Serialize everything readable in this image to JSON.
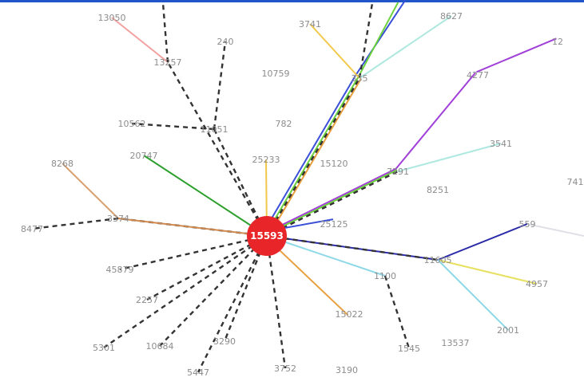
{
  "hub": {
    "id": "hub",
    "label": "15593",
    "color": "#e8262a"
  },
  "nodes": [
    {
      "id": "n13050",
      "label": "13050"
    },
    {
      "id": "n13257",
      "label": "13257"
    },
    {
      "id": "n240",
      "label": "240"
    },
    {
      "id": "n3741",
      "label": "3741"
    },
    {
      "id": "n8627",
      "label": "8627"
    },
    {
      "id": "n12",
      "label": "12"
    },
    {
      "id": "n4277",
      "label": "4277"
    },
    {
      "id": "n10759",
      "label": "10759"
    },
    {
      "id": "n335",
      "label": "335"
    },
    {
      "id": "n10562",
      "label": "10562"
    },
    {
      "id": "n11051",
      "label": "11051"
    },
    {
      "id": "n782",
      "label": "782"
    },
    {
      "id": "n3541",
      "label": "3541"
    },
    {
      "id": "n20747",
      "label": "20747"
    },
    {
      "id": "n25233",
      "label": "25233"
    },
    {
      "id": "n15120",
      "label": "15120"
    },
    {
      "id": "n8268",
      "label": "8268"
    },
    {
      "id": "n7291",
      "label": "7291"
    },
    {
      "id": "n8251",
      "label": "8251"
    },
    {
      "id": "n741",
      "label": "741"
    },
    {
      "id": "n8477",
      "label": "8477"
    },
    {
      "id": "n3374",
      "label": "3374"
    },
    {
      "id": "n25125",
      "label": "25125"
    },
    {
      "id": "n559",
      "label": "559"
    },
    {
      "id": "n45879",
      "label": "45879"
    },
    {
      "id": "n11605",
      "label": "11605"
    },
    {
      "id": "n1100",
      "label": "1100"
    },
    {
      "id": "n4957",
      "label": "4957"
    },
    {
      "id": "n2257",
      "label": "2257"
    },
    {
      "id": "n15022",
      "label": "15022"
    },
    {
      "id": "n2001",
      "label": "2001"
    },
    {
      "id": "n5301",
      "label": "5301"
    },
    {
      "id": "n10684",
      "label": "10684"
    },
    {
      "id": "n3290",
      "label": "3290"
    },
    {
      "id": "n1545",
      "label": "1545"
    },
    {
      "id": "n13537",
      "label": "13537"
    },
    {
      "id": "n5447",
      "label": "5447"
    },
    {
      "id": "n3752",
      "label": "3752"
    },
    {
      "id": "n3190",
      "label": "3190"
    }
  ],
  "edges": [
    {
      "from": "hub",
      "to": "n13257",
      "color": "#333333",
      "style": "dashed"
    },
    {
      "from": "n13257",
      "to": "n13050",
      "color": "#f2a0a0",
      "style": "solid"
    },
    {
      "from": "n13257",
      "to": "top-a",
      "color": "#333333",
      "style": "dashed"
    },
    {
      "from": "hub",
      "to": "n11051",
      "color": "#333333",
      "style": "dashed"
    },
    {
      "from": "n11051",
      "to": "n10562",
      "color": "#333333",
      "style": "dashed"
    },
    {
      "from": "n11051",
      "to": "n240",
      "color": "#333333",
      "style": "dashed"
    },
    {
      "from": "hub",
      "to": "n20747",
      "color": "#2ea02e",
      "style": "solid"
    },
    {
      "from": "hub",
      "to": "n25233",
      "color": "#f2c84a",
      "style": "solid"
    },
    {
      "from": "hub",
      "to": "n3374",
      "color": "#333333",
      "style": "dashed"
    },
    {
      "from": "n3374",
      "to": "n8268",
      "color": "#d8a070",
      "style": "solid"
    },
    {
      "from": "n3374",
      "to": "n8477",
      "color": "#333333",
      "style": "dashed"
    },
    {
      "from": "hub",
      "to": "n3374",
      "color": "#d08a50",
      "style": "solid"
    },
    {
      "from": "hub",
      "to": "n335",
      "color": "#3b4fd8",
      "style": "solid"
    },
    {
      "from": "hub",
      "to": "n335",
      "color": "#6ad23a",
      "style": "solid"
    },
    {
      "from": "hub",
      "to": "n335",
      "color": "#e8a040",
      "style": "solid"
    },
    {
      "from": "hub",
      "to": "n335",
      "color": "#333333",
      "style": "dashed"
    },
    {
      "from": "n335",
      "to": "top-c",
      "color": "#3b4fd8",
      "style": "solid"
    },
    {
      "from": "n335",
      "to": "top-b",
      "color": "#6ad23a",
      "style": "solid"
    },
    {
      "from": "n335",
      "to": "n3741",
      "color": "#f2c84a",
      "style": "solid"
    },
    {
      "from": "n335",
      "to": "top-d",
      "color": "#333333",
      "style": "dashed"
    },
    {
      "from": "n335",
      "to": "n8627",
      "color": "#aee8e0",
      "style": "solid"
    },
    {
      "from": "hub",
      "to": "n7291",
      "color": "#a040d8",
      "style": "solid"
    },
    {
      "from": "hub",
      "to": "n7291",
      "color": "#6ad23a",
      "style": "solid"
    },
    {
      "from": "hub",
      "to": "n7291",
      "color": "#333333",
      "style": "dashed"
    },
    {
      "from": "n7291",
      "to": "n4277",
      "color": "#a040d8",
      "style": "solid"
    },
    {
      "from": "n4277",
      "to": "n12",
      "color": "#a040d8",
      "style": "solid"
    },
    {
      "from": "n7291",
      "to": "n3541",
      "color": "#aee8e0",
      "style": "solid"
    },
    {
      "from": "hub",
      "to": "n25125",
      "color": "#3b4fd8",
      "style": "solid"
    },
    {
      "from": "hub",
      "to": "n11605",
      "color": "#2a2aa8",
      "style": "solid"
    },
    {
      "from": "n11605",
      "to": "n559",
      "color": "#2a2aa8",
      "style": "solid"
    },
    {
      "from": "hub",
      "to": "n11605",
      "color": "#333333",
      "style": "dashed"
    },
    {
      "from": "hub",
      "to": "n1100",
      "color": "#8ed8e8",
      "style": "solid"
    },
    {
      "from": "n11605",
      "to": "n4957",
      "color": "#e8e060",
      "style": "solid"
    },
    {
      "from": "n11605",
      "to": "n2001",
      "color": "#8ed8e8",
      "style": "solid"
    },
    {
      "from": "n1100",
      "to": "n1545",
      "color": "#333333",
      "style": "dashed"
    },
    {
      "from": "hub",
      "to": "n15022",
      "color": "#e8a040",
      "style": "solid"
    },
    {
      "from": "hub",
      "to": "n2257",
      "color": "#333333",
      "style": "dashed"
    },
    {
      "from": "hub",
      "to": "n5301",
      "color": "#333333",
      "style": "dashed"
    },
    {
      "from": "hub",
      "to": "n10684",
      "color": "#333333",
      "style": "dashed"
    },
    {
      "from": "hub",
      "to": "n3290",
      "color": "#333333",
      "style": "dashed"
    },
    {
      "from": "hub",
      "to": "n5447",
      "color": "#333333",
      "style": "dashed"
    },
    {
      "from": "hub",
      "to": "n3752",
      "color": "#333333",
      "style": "dashed"
    },
    {
      "from": "hub",
      "to": "n45879",
      "color": "#333333",
      "style": "dashed"
    },
    {
      "from": "n559",
      "to": "right-a",
      "color": "#e0e0e8",
      "style": "solid"
    }
  ]
}
